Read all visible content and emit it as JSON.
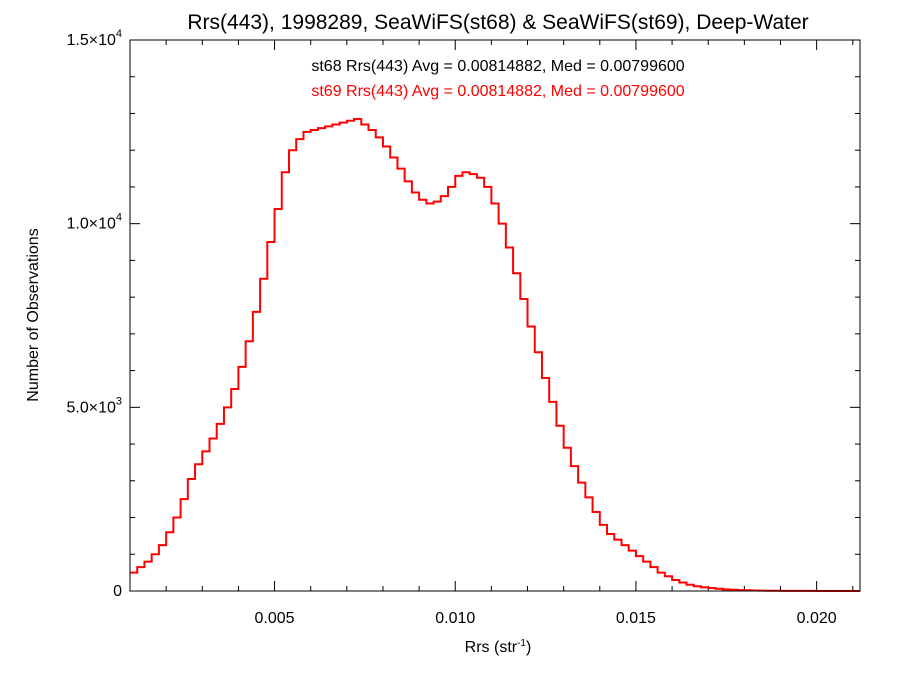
{
  "chart_data": {
    "type": "line",
    "title": "Rrs(443), 1998289, SeaWiFS(st68) & SeaWiFS(st69), Deep-Water",
    "xlabel": "Rrs (str",
    "xlabel_sup": "-1",
    "xlabel_close": ")",
    "ylabel": "Number of Observations",
    "xlim": [
      0.001,
      0.0212
    ],
    "ylim": [
      0,
      15000
    ],
    "x_ticks": [
      {
        "value": 0.005,
        "label": "0.005"
      },
      {
        "value": 0.01,
        "label": "0.010"
      },
      {
        "value": 0.015,
        "label": "0.015"
      },
      {
        "value": 0.02,
        "label": "0.020"
      }
    ],
    "y_ticks": [
      {
        "value": 0,
        "mant": "0",
        "exp": ""
      },
      {
        "value": 5000,
        "mant": "5.0×10",
        "exp": "3"
      },
      {
        "value": 10000,
        "mant": "1.0×10",
        "exp": "4"
      },
      {
        "value": 15000,
        "mant": "1.5×10",
        "exp": "4"
      }
    ],
    "annotations": [
      {
        "text": "st68 Rrs(443) Avg = 0.00814882, Med = 0.00799600",
        "color": "#000000"
      },
      {
        "text": "st69 Rrs(443) Avg = 0.00814882, Med = 0.00799600",
        "color": "#ff0000"
      }
    ],
    "series": [
      {
        "color": "#ff0000",
        "step": true,
        "x": [
          0.001,
          0.0012,
          0.0014,
          0.0016,
          0.0018,
          0.002,
          0.0022,
          0.0024,
          0.0026,
          0.0028,
          0.003,
          0.0032,
          0.0034,
          0.0036,
          0.0038,
          0.004,
          0.0042,
          0.0044,
          0.0046,
          0.0048,
          0.005,
          0.0052,
          0.0054,
          0.0056,
          0.0058,
          0.006,
          0.0062,
          0.0064,
          0.0066,
          0.0068,
          0.007,
          0.0072,
          0.0074,
          0.0076,
          0.0078,
          0.008,
          0.0082,
          0.0084,
          0.0086,
          0.0088,
          0.009,
          0.0092,
          0.0094,
          0.0096,
          0.0098,
          0.01,
          0.0102,
          0.0104,
          0.0106,
          0.0108,
          0.011,
          0.0112,
          0.0114,
          0.0116,
          0.0118,
          0.012,
          0.0122,
          0.0124,
          0.0126,
          0.0128,
          0.013,
          0.0132,
          0.0134,
          0.0136,
          0.0138,
          0.014,
          0.0142,
          0.0144,
          0.0146,
          0.0148,
          0.015,
          0.0152,
          0.0154,
          0.0156,
          0.0158,
          0.016,
          0.0162,
          0.0164,
          0.0166,
          0.0168,
          0.017,
          0.0172,
          0.0174,
          0.0176,
          0.0178,
          0.018,
          0.0182,
          0.0184,
          0.0186,
          0.0188,
          0.019,
          0.0192,
          0.0194,
          0.0196,
          0.0198,
          0.02,
          0.0202,
          0.0204,
          0.0206,
          0.0208,
          0.021
        ],
        "y": [
          500,
          650,
          800,
          1000,
          1250,
          1600,
          2000,
          2500,
          3050,
          3450,
          3800,
          4150,
          4550,
          5000,
          5500,
          6100,
          6800,
          7600,
          8500,
          9500,
          10400,
          11400,
          12000,
          12300,
          12500,
          12550,
          12600,
          12650,
          12700,
          12750,
          12800,
          12850,
          12700,
          12550,
          12350,
          12100,
          11800,
          11500,
          11150,
          10850,
          10650,
          10550,
          10600,
          10750,
          11000,
          11300,
          11400,
          11350,
          11250,
          11000,
          10550,
          10000,
          9350,
          8650,
          7950,
          7200,
          6500,
          5800,
          5150,
          4500,
          3900,
          3400,
          2950,
          2550,
          2150,
          1800,
          1550,
          1400,
          1250,
          1100,
          950,
          800,
          650,
          500,
          400,
          300,
          230,
          170,
          130,
          100,
          80,
          60,
          45,
          35,
          25,
          20,
          15,
          10,
          8,
          6,
          5,
          4,
          3,
          2,
          2,
          1,
          1,
          1,
          0,
          0,
          0
        ]
      }
    ]
  }
}
